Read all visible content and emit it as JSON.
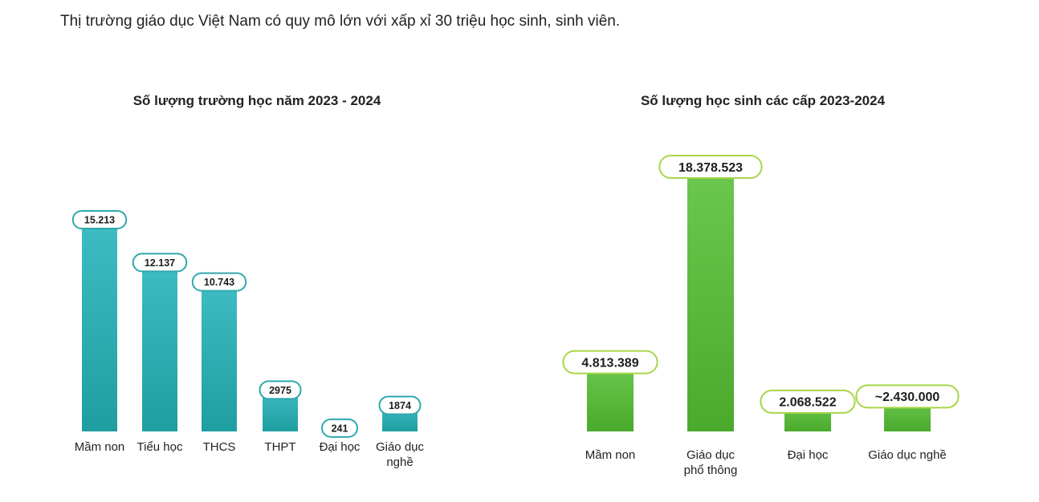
{
  "intro_text": "Thị trường giáo dục Việt Nam có quy mô lớn với xấp xỉ 30 triệu học sinh, sinh viên.",
  "chart_data": [
    {
      "type": "bar",
      "title": "Số lượng trường học năm 2023 - 2024",
      "categories": [
        [
          "Mầm non"
        ],
        [
          "Tiểu học"
        ],
        [
          "THCS"
        ],
        [
          "THPT"
        ],
        [
          "Đại học"
        ],
        [
          "Giáo dục",
          "nghề"
        ]
      ],
      "values": [
        15213,
        12137,
        10743,
        2975,
        241,
        1874
      ],
      "value_labels": [
        "15.213",
        "12.137",
        "10.743",
        "2975",
        "241",
        "1874"
      ],
      "ylim": [
        0,
        15213
      ],
      "bar_color_top": "#3fbcc4",
      "bar_color_bottom": "#1f9ea0",
      "badge_border": "#2fa8ad",
      "xlabel": "",
      "ylabel": ""
    },
    {
      "type": "bar",
      "title": "Số lượng học sinh các cấp 2023-2024",
      "categories": [
        [
          "Mầm non"
        ],
        [
          "Giáo dục",
          "phổ thông"
        ],
        [
          "Đại học"
        ],
        [
          "Giáo dục nghề"
        ]
      ],
      "values": [
        4813389,
        18378523,
        2068522,
        2430000
      ],
      "value_labels": [
        "4.813.389",
        "18.378.523",
        "2.068.522",
        "~2.430.000"
      ],
      "ylim": [
        0,
        18378523
      ],
      "bar_color_top": "#6cc84f",
      "bar_color_bottom": "#4aaa2c",
      "badge_border": "#a8d64a",
      "xlabel": "",
      "ylabel": ""
    }
  ]
}
